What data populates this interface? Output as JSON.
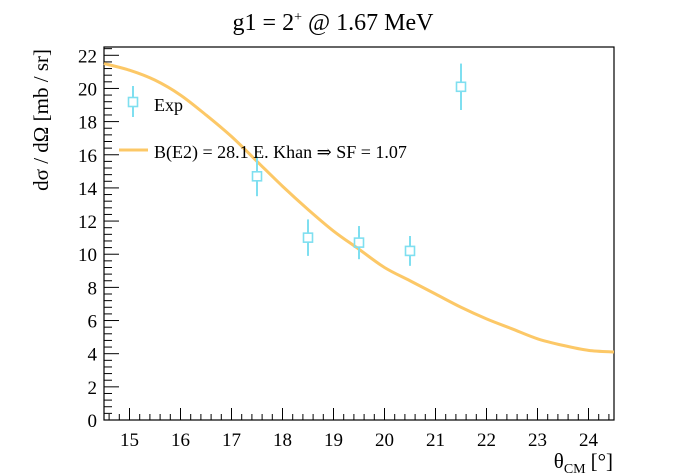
{
  "chart_data": {
    "type": "scatter",
    "title": "g1 = 2",
    "title_superscript": "+",
    "title_suffix": "@ 1.67 MeV",
    "xlabel_symbol": "θ",
    "xlabel_subscript": "CM",
    "xlabel_unit": "[°]",
    "ylabel": "dσ / dΩ [mb / sr]",
    "xlim": [
      14.5,
      24.5
    ],
    "ylim": [
      0,
      22.5
    ],
    "xticks": [
      15,
      16,
      17,
      18,
      19,
      20,
      21,
      22,
      23,
      24
    ],
    "xtick_labels": [
      "15",
      "16",
      "17",
      "18",
      "19",
      "20",
      "21",
      "22",
      "23",
      "24"
    ],
    "yticks": [
      0,
      2,
      4,
      6,
      8,
      10,
      12,
      14,
      16,
      18,
      20,
      22
    ],
    "ytick_labels": [
      "0",
      "2",
      "4",
      "6",
      "8",
      "10",
      "12",
      "14",
      "16",
      "18",
      "20",
      "22"
    ],
    "grid": false,
    "legend_position": "top-left",
    "series": [
      {
        "name": "Exp",
        "kind": "points",
        "marker": "open-square",
        "color": "#7fdff0",
        "points": [
          {
            "x": 17.5,
            "y": 14.7,
            "err": 1.2
          },
          {
            "x": 18.5,
            "y": 11.0,
            "err": 1.1
          },
          {
            "x": 19.5,
            "y": 10.7,
            "err": 1.0
          },
          {
            "x": 20.5,
            "y": 10.2,
            "err": 0.9
          },
          {
            "x": 21.5,
            "y": 20.1,
            "err": 1.4
          }
        ]
      },
      {
        "name": "B(E2) = 28.1 E. Khan ⇒ SF = 1.07",
        "kind": "line",
        "color": "#fcc867",
        "x": [
          14.5,
          15.0,
          15.5,
          16.0,
          16.5,
          17.0,
          17.5,
          18.0,
          18.5,
          19.0,
          19.5,
          20.0,
          20.5,
          21.0,
          21.5,
          22.0,
          22.5,
          23.0,
          23.5,
          24.0,
          24.5
        ],
        "y": [
          21.5,
          21.1,
          20.5,
          19.6,
          18.4,
          17.1,
          15.6,
          14.1,
          12.7,
          11.4,
          10.3,
          9.2,
          8.4,
          7.6,
          6.8,
          6.1,
          5.5,
          4.9,
          4.5,
          4.2,
          4.1
        ]
      }
    ]
  }
}
